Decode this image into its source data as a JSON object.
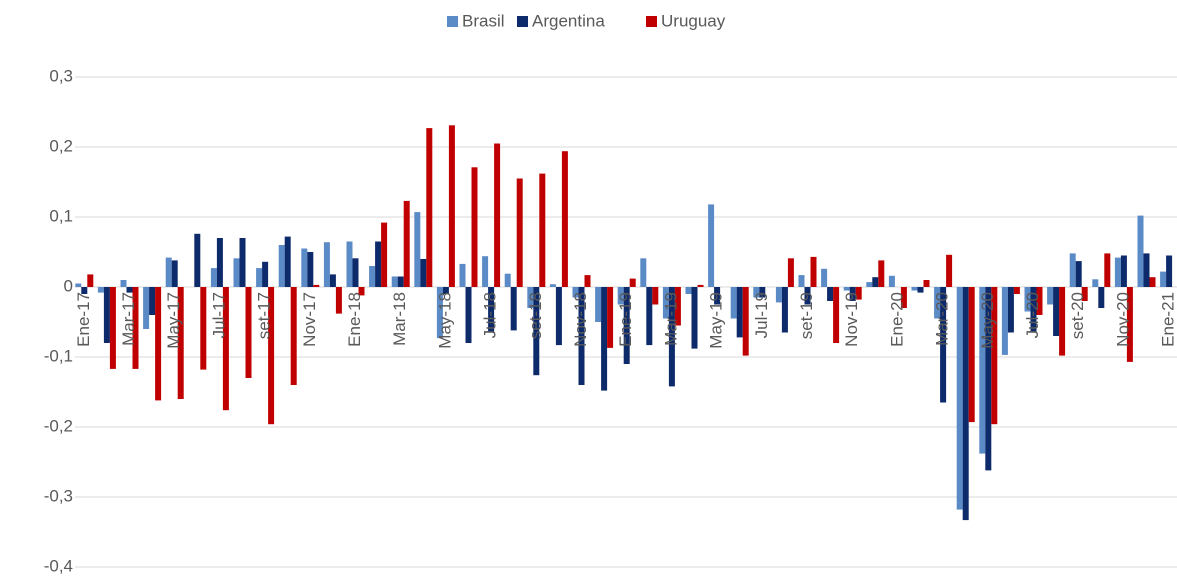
{
  "chart_data": {
    "type": "bar",
    "categories": [
      "Ene-17",
      null,
      "Mar-17",
      null,
      "May-17",
      null,
      "Jul-17",
      null,
      "set-17",
      null,
      "Nov-17",
      null,
      "Ene-18",
      null,
      "Mar-18",
      null,
      "May-18",
      null,
      "Jul-18",
      null,
      "set-18",
      null,
      "Nov-18",
      null,
      "Ene-19",
      null,
      "Mar-19",
      null,
      "May-19",
      null,
      "Jul-19",
      null,
      "set-19",
      null,
      "Nov-19",
      null,
      "Ene-20",
      null,
      "Mar-20",
      null,
      "May-20",
      null,
      "Jul-20",
      null,
      "set-20",
      null,
      "Nov-20",
      null,
      "Ene-21"
    ],
    "series": [
      {
        "name": "Brasil",
        "color": "#5b8bc6",
        "values": [
          0.005,
          -0.008,
          0.01,
          -0.06,
          0.042,
          0,
          0.027,
          0.041,
          0.027,
          0.06,
          0.055,
          0.064,
          0.065,
          0.03,
          0.015,
          0.107,
          -0.073,
          0.033,
          0.044,
          0.019,
          -0.03,
          0.004,
          -0.015,
          -0.05,
          -0.025,
          0.041,
          -0.045,
          -0.01,
          0.118,
          -0.045,
          -0.015,
          -0.022,
          0.017,
          0.026,
          -0.005,
          0.007,
          0.016,
          -0.005,
          -0.045,
          -0.318,
          -0.238,
          -0.097,
          -0.035,
          -0.025,
          0.048,
          0.011,
          0.042,
          0.102,
          0.022
        ]
      },
      {
        "name": "Argentina",
        "color": "#0d2a6b",
        "values": [
          -0.01,
          -0.08,
          -0.008,
          -0.04,
          0.038,
          0.076,
          0.07,
          0.07,
          0.036,
          0.072,
          0.05,
          0.018,
          0.041,
          0.065,
          0.015,
          0.04,
          -0.01,
          -0.08,
          -0.065,
          -0.062,
          -0.126,
          -0.083,
          -0.14,
          -0.148,
          -0.11,
          -0.083,
          -0.142,
          -0.088,
          -0.025,
          -0.072,
          -0.015,
          -0.065,
          -0.025,
          -0.02,
          -0.02,
          0.014,
          0,
          -0.008,
          -0.165,
          -0.333,
          -0.262,
          -0.065,
          -0.065,
          -0.07,
          0.037,
          -0.03,
          0.045,
          0.048,
          0.045
        ]
      },
      {
        "name": "Uruguay",
        "color": "#c00000",
        "values": [
          0.018,
          -0.117,
          -0.117,
          -0.162,
          -0.16,
          -0.118,
          -0.176,
          -0.13,
          -0.196,
          -0.14,
          0.003,
          -0.038,
          -0.012,
          0.092,
          0.123,
          0.227,
          0.231,
          0.171,
          0.205,
          0.155,
          0.162,
          0.194,
          0.017,
          -0.087,
          0.012,
          -0.025,
          -0.055,
          0.003,
          0,
          -0.098,
          0,
          0.041,
          0.043,
          -0.08,
          -0.018,
          0.038,
          -0.03,
          0.01,
          0.046,
          -0.193,
          -0.196,
          -0.01,
          -0.04,
          -0.098,
          -0.02,
          0.048,
          -0.107,
          0.014,
          null
        ]
      }
    ],
    "ylim": [
      -0.4,
      0.3
    ],
    "yticks": [
      {
        "value": -0.4,
        "label": "-0,4"
      },
      {
        "value": -0.3,
        "label": "-0,3"
      },
      {
        "value": -0.2,
        "label": "-0,2"
      },
      {
        "value": -0.1,
        "label": "-0,1"
      },
      0,
      {
        "value": 0.1,
        "label": "0,1"
      },
      {
        "value": 0.2,
        "label": "0,2"
      },
      {
        "value": 0.3,
        "label": "0,3"
      }
    ],
    "grid": true,
    "legend": "top"
  }
}
